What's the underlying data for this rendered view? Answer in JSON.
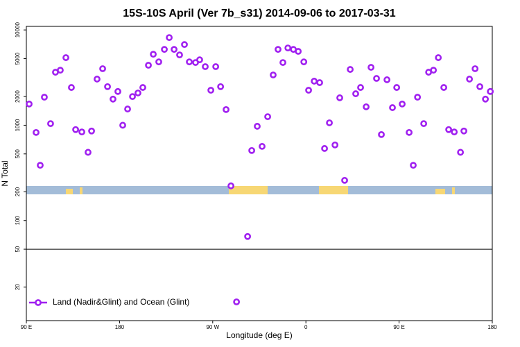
{
  "chart_data": {
    "type": "scatter",
    "title": "15S-10S April (Ver 7b_s31)   2014-09-06 to 2017-03-31",
    "x_label": "Longitude (deg E)",
    "y_label": "N Total",
    "log_y": true,
    "xlim": [
      90,
      540
    ],
    "ylim": [
      8.9,
      10900
    ],
    "xticks": [
      {
        "value": 90,
        "label": "90 E"
      },
      180,
      {
        "value": 270,
        "label": "90 W"
      },
      {
        "value": 360,
        "label": "0"
      },
      {
        "value": 450,
        "label": "90 E"
      },
      {
        "value": 540,
        "label": "180"
      }
    ],
    "yticks": [
      20,
      50,
      100,
      200,
      500,
      1000,
      2000,
      5000,
      10000
    ],
    "reference_line": 50,
    "legend_position": "bottom-left",
    "series": [
      {
        "name": "Land (Nadir&Glint) and Ocean (Glint)",
        "color": "#a020f0",
        "x": [
          92.7,
          99.4,
          103.4,
          107.4,
          113.4,
          118.1,
          122.8,
          128.2,
          133.5,
          137.6,
          143.6,
          149.6,
          153.0,
          158.3,
          163.7,
          168.4,
          173.7,
          178.4,
          183.1,
          187.8,
          192.5,
          197.8,
          202.5,
          207.9,
          212.6,
          217.9,
          223.3,
          228.0,
          232.7,
          238.0,
          242.7,
          247.4,
          253.4,
          257.4,
          262.8,
          268.2,
          272.9,
          277.6,
          282.9,
          287.6,
          293.0,
          303.7,
          307.7,
          313.0,
          317.7,
          323.1,
          328.4,
          333.1,
          337.8,
          342.6,
          347.9,
          352.6,
          358.0,
          362.6,
          368.0,
          373.3,
          378.0,
          382.7,
          388.1,
          392.7,
          397.4,
          402.8,
          408.1,
          412.8,
          418.2,
          422.9,
          428.2,
          432.9,
          438.3,
          443.6,
          447.7,
          453.0,
          459.7,
          463.7,
          467.8,
          473.8,
          478.5,
          483.2,
          487.9,
          493.2,
          497.9,
          503.3,
          509.3,
          512.6,
          518.0,
          523.4,
          528.0,
          533.4,
          538.1
        ],
        "values": [
          1670,
          840,
          380,
          1970,
          1040,
          3600,
          3780,
          5120,
          2490,
          900,
          850,
          520,
          870,
          3050,
          3920,
          2540,
          1880,
          2260,
          1000,
          1480,
          2000,
          2180,
          2490,
          4260,
          5560,
          4620,
          6250,
          8320,
          6250,
          5470,
          7030,
          4620,
          4550,
          4860,
          4120,
          2330,
          4120,
          2540,
          1460,
          231,
          14,
          68,
          543,
          975,
          600,
          1230,
          3370,
          6250,
          4550,
          6470,
          6250,
          5960,
          4620,
          2330,
          2900,
          2800,
          570,
          1060,
          621,
          1940,
          264,
          3850,
          2140,
          2490,
          1560,
          4050,
          3100,
          798,
          3000,
          1530,
          2490,
          1670,
          840,
          380,
          1970,
          1040,
          3600,
          3780,
          5120,
          2490,
          900,
          850,
          520,
          870,
          3050,
          3920,
          2540,
          1880,
          2260
        ]
      }
    ]
  }
}
